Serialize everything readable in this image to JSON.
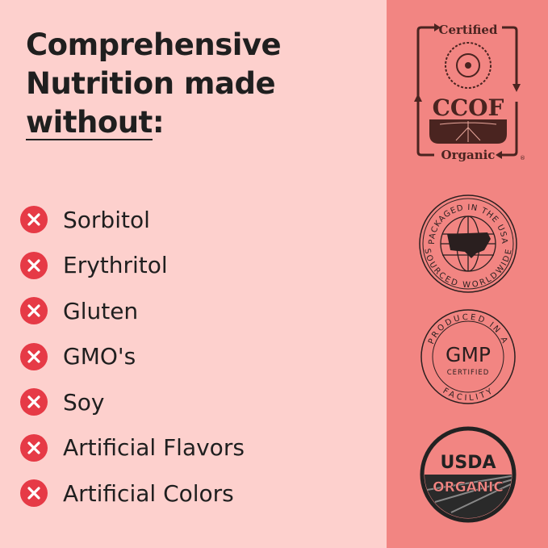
{
  "headline": {
    "line1": "Comprehensive",
    "line2": "Nutrition made",
    "line3": "without",
    "colon": ":"
  },
  "items": [
    {
      "label": "Sorbitol",
      "icon": "x-circle-icon"
    },
    {
      "label": "Erythritol",
      "icon": "x-circle-icon"
    },
    {
      "label": "Gluten",
      "icon": "x-circle-icon"
    },
    {
      "label": "GMO's",
      "icon": "x-circle-icon"
    },
    {
      "label": "Soy",
      "icon": "x-circle-icon"
    },
    {
      "label": "Artificial Flavors",
      "icon": "x-circle-icon"
    },
    {
      "label": "Artificial Colors",
      "icon": "x-circle-icon"
    }
  ],
  "badges": {
    "ccof": {
      "top": "Certified",
      "middle": "CCOF",
      "bottom": "Organic",
      "mark": "®"
    },
    "usa": {
      "top": "PACKAGED IN THE USA",
      "bottom": "SOURCED WORLDWIDE"
    },
    "gmp": {
      "top": "PRODUCED IN A",
      "middle": "GMP",
      "sub": "CERTIFIED",
      "bottom": "FACILITY"
    },
    "usda": {
      "top": "USDA",
      "bottom": "ORGANIC"
    }
  },
  "colors": {
    "left_bg": "#fdd0cd",
    "right_bg": "#f28582",
    "x_red": "#e63a46",
    "text": "#1f1f1f",
    "ccof_brown": "#4a2420"
  }
}
